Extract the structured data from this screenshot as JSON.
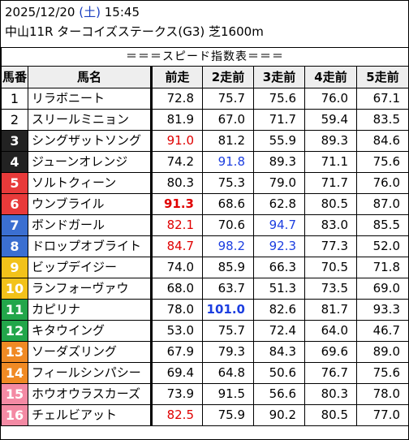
{
  "header": {
    "date": "2025/12/20",
    "weekday_open": "(",
    "weekday": "土",
    "weekday_close": ")",
    "time": "15:45",
    "race": "中山11R ターコイズステークス(G3) 芝1600m"
  },
  "banner": "＝＝＝スピード指数表＝＝＝",
  "columns": [
    "馬番",
    "馬名",
    "前走",
    "2走前",
    "3走前",
    "4走前",
    "5走前"
  ],
  "rows": [
    {
      "num": "1",
      "name": "リラボニート",
      "bg": "#ffffff",
      "fg": "#000000",
      "v": [
        "72.8",
        "75.7",
        "75.6",
        "76.0",
        "67.1"
      ],
      "s": [
        "",
        "",
        "",
        "",
        ""
      ]
    },
    {
      "num": "2",
      "name": "スリールミニョン",
      "bg": "#ffffff",
      "fg": "#000000",
      "v": [
        "81.9",
        "67.0",
        "71.7",
        "59.4",
        "83.5"
      ],
      "s": [
        "",
        "",
        "",
        "",
        ""
      ]
    },
    {
      "num": "3",
      "name": "シングザットソング",
      "bg": "#222222",
      "fg": "#ffffff",
      "v": [
        "91.0",
        "81.2",
        "55.9",
        "89.3",
        "84.6"
      ],
      "s": [
        "red",
        "",
        "",
        "",
        ""
      ]
    },
    {
      "num": "4",
      "name": "ジューンオレンジ",
      "bg": "#222222",
      "fg": "#ffffff",
      "v": [
        "74.2",
        "91.8",
        "89.3",
        "71.1",
        "75.6"
      ],
      "s": [
        "",
        "blue",
        "",
        "",
        ""
      ]
    },
    {
      "num": "5",
      "name": "ソルトクィーン",
      "bg": "#e83a3a",
      "fg": "#ffffff",
      "v": [
        "80.3",
        "75.3",
        "79.0",
        "71.7",
        "76.0"
      ],
      "s": [
        "",
        "",
        "",
        "",
        ""
      ]
    },
    {
      "num": "6",
      "name": "ウンブライル",
      "bg": "#e83a3a",
      "fg": "#ffffff",
      "v": [
        "91.3",
        "68.6",
        "62.8",
        "80.5",
        "87.0"
      ],
      "s": [
        "red bold",
        "",
        "",
        "",
        ""
      ]
    },
    {
      "num": "7",
      "name": "ボンドガール",
      "bg": "#3b6fd1",
      "fg": "#ffffff",
      "v": [
        "82.1",
        "70.6",
        "94.7",
        "83.0",
        "85.5"
      ],
      "s": [
        "red",
        "",
        "blue",
        "",
        ""
      ]
    },
    {
      "num": "8",
      "name": "ドロップオブライト",
      "bg": "#3b6fd1",
      "fg": "#ffffff",
      "v": [
        "84.7",
        "98.2",
        "92.3",
        "77.3",
        "52.0"
      ],
      "s": [
        "red",
        "blue",
        "blue",
        "",
        ""
      ]
    },
    {
      "num": "9",
      "name": "ビップデイジー",
      "bg": "#f2c21a",
      "fg": "#ffffff",
      "v": [
        "74.0",
        "85.9",
        "66.3",
        "70.5",
        "71.8"
      ],
      "s": [
        "",
        "",
        "",
        "",
        ""
      ]
    },
    {
      "num": "10",
      "name": "ランフォーヴァウ",
      "bg": "#f2c21a",
      "fg": "#ffffff",
      "v": [
        "68.0",
        "63.7",
        "51.3",
        "73.5",
        "69.0"
      ],
      "s": [
        "",
        "",
        "",
        "",
        ""
      ]
    },
    {
      "num": "11",
      "name": "カピリナ",
      "bg": "#22a64a",
      "fg": "#ffffff",
      "v": [
        "78.0",
        "101.0",
        "82.6",
        "81.7",
        "93.3"
      ],
      "s": [
        "",
        "blue bold",
        "",
        "",
        ""
      ]
    },
    {
      "num": "12",
      "name": "キタウイング",
      "bg": "#22a64a",
      "fg": "#ffffff",
      "v": [
        "53.0",
        "75.7",
        "72.4",
        "64.0",
        "46.7"
      ],
      "s": [
        "",
        "",
        "",
        "",
        ""
      ]
    },
    {
      "num": "13",
      "name": "ソーダズリング",
      "bg": "#f08a24",
      "fg": "#ffffff",
      "v": [
        "67.9",
        "79.3",
        "84.3",
        "69.6",
        "89.0"
      ],
      "s": [
        "",
        "",
        "",
        "",
        ""
      ]
    },
    {
      "num": "14",
      "name": "フィールシンパシー",
      "bg": "#f08a24",
      "fg": "#ffffff",
      "v": [
        "69.4",
        "64.8",
        "50.6",
        "76.7",
        "75.6"
      ],
      "s": [
        "",
        "",
        "",
        "",
        ""
      ]
    },
    {
      "num": "15",
      "name": "ホウオウラスカーズ",
      "bg": "#f48aa4",
      "fg": "#ffffff",
      "v": [
        "73.9",
        "91.5",
        "56.6",
        "80.3",
        "78.0"
      ],
      "s": [
        "",
        "",
        "",
        "",
        ""
      ]
    },
    {
      "num": "16",
      "name": "チェルビアット",
      "bg": "#f48aa4",
      "fg": "#ffffff",
      "v": [
        "82.5",
        "75.9",
        "90.2",
        "80.5",
        "77.0"
      ],
      "s": [
        "red",
        "",
        "",
        "",
        ""
      ]
    }
  ]
}
